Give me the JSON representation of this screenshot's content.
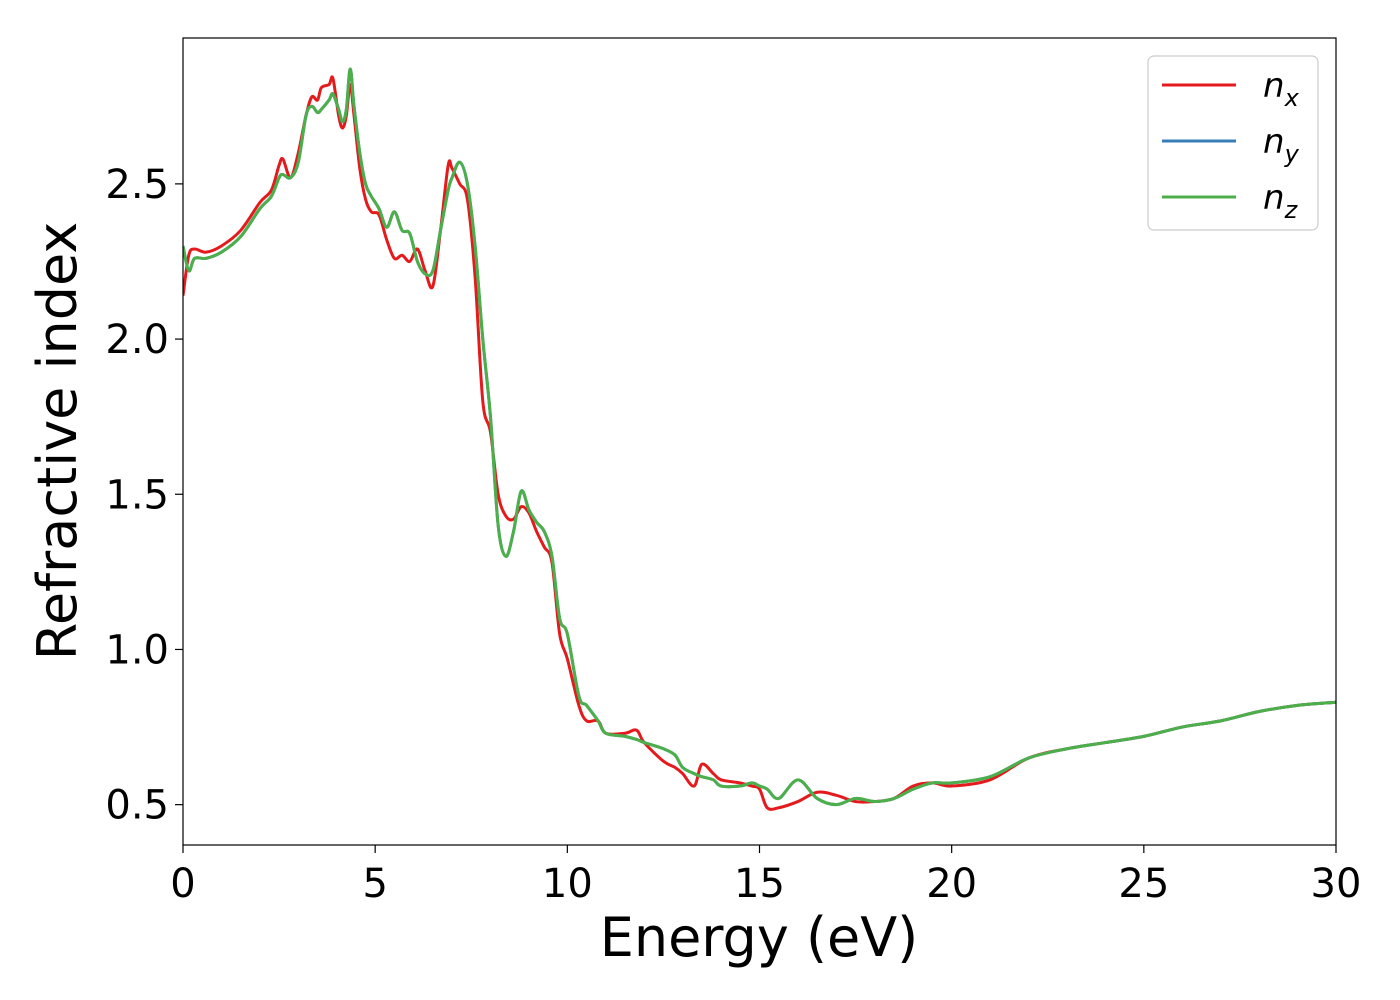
{
  "chart_data": {
    "type": "line",
    "title": "",
    "xlabel": "Energy (eV)",
    "ylabel": "Refractive index",
    "xlim": [
      0,
      30
    ],
    "ylim": [
      0.37,
      2.97
    ],
    "xticks": [
      0,
      5,
      10,
      15,
      20,
      25,
      30
    ],
    "xtick_labels": [
      "0",
      "5",
      "10",
      "15",
      "20",
      "25",
      "30"
    ],
    "yticks": [
      0.5,
      1.0,
      1.5,
      2.0,
      2.5
    ],
    "ytick_labels": [
      "0.5",
      "1.0",
      "1.5",
      "2.0",
      "2.5"
    ],
    "grid": false,
    "legend_position": "top-right",
    "series": [
      {
        "name": "n",
        "subscript": "x",
        "color": "#e41a1c",
        "x": [
          0,
          0.15,
          0.3,
          0.6,
          1.0,
          1.5,
          2.0,
          2.3,
          2.5,
          2.6,
          2.8,
          3.0,
          3.2,
          3.35,
          3.5,
          3.6,
          3.8,
          3.9,
          4.05,
          4.15,
          4.25,
          4.35,
          4.45,
          4.6,
          4.75,
          4.9,
          5.1,
          5.3,
          5.5,
          5.7,
          5.9,
          6.1,
          6.3,
          6.5,
          6.7,
          6.9,
          7.0,
          7.2,
          7.4,
          7.6,
          7.8,
          8.0,
          8.2,
          8.4,
          8.6,
          8.8,
          9.0,
          9.2,
          9.4,
          9.6,
          9.8,
          10.0,
          10.3,
          10.5,
          10.8,
          11.0,
          11.5,
          11.8,
          12.0,
          12.5,
          12.8,
          13.0,
          13.3,
          13.5,
          13.8,
          14.0,
          14.5,
          14.8,
          15.0,
          15.2,
          15.5,
          16.0,
          16.5,
          17.0,
          17.5,
          18.0,
          18.5,
          19.0,
          19.5,
          20.0,
          21.0,
          22.0,
          23.0,
          24.0,
          25.0,
          26.0,
          27.0,
          28.0,
          29.0,
          30.0
        ],
        "values": [
          2.14,
          2.27,
          2.29,
          2.28,
          2.3,
          2.35,
          2.44,
          2.48,
          2.56,
          2.58,
          2.52,
          2.6,
          2.72,
          2.78,
          2.77,
          2.81,
          2.82,
          2.84,
          2.72,
          2.68,
          2.72,
          2.82,
          2.72,
          2.55,
          2.45,
          2.41,
          2.4,
          2.32,
          2.26,
          2.27,
          2.25,
          2.29,
          2.22,
          2.17,
          2.35,
          2.56,
          2.55,
          2.5,
          2.45,
          2.2,
          1.8,
          1.7,
          1.5,
          1.43,
          1.42,
          1.46,
          1.44,
          1.38,
          1.33,
          1.28,
          1.05,
          0.97,
          0.82,
          0.77,
          0.77,
          0.73,
          0.73,
          0.74,
          0.7,
          0.64,
          0.62,
          0.6,
          0.56,
          0.63,
          0.6,
          0.58,
          0.57,
          0.56,
          0.55,
          0.49,
          0.49,
          0.51,
          0.54,
          0.53,
          0.51,
          0.51,
          0.52,
          0.56,
          0.57,
          0.56,
          0.58,
          0.65,
          0.68,
          0.7,
          0.72,
          0.75,
          0.77,
          0.8,
          0.82,
          0.83
        ]
      },
      {
        "name": "n",
        "subscript": "y",
        "color": "#377eb8",
        "x": [
          0,
          0.15,
          0.3,
          0.6,
          1.0,
          1.5,
          2.0,
          2.3,
          2.5,
          2.6,
          2.8,
          3.0,
          3.2,
          3.35,
          3.5,
          3.6,
          3.8,
          3.9,
          4.05,
          4.15,
          4.25,
          4.35,
          4.45,
          4.6,
          4.75,
          4.9,
          5.1,
          5.3,
          5.5,
          5.7,
          5.9,
          6.1,
          6.3,
          6.5,
          6.7,
          6.9,
          7.0,
          7.2,
          7.4,
          7.6,
          7.8,
          8.0,
          8.2,
          8.4,
          8.6,
          8.8,
          9.0,
          9.2,
          9.4,
          9.6,
          9.8,
          10.0,
          10.3,
          10.5,
          10.8,
          11.0,
          11.5,
          11.8,
          12.0,
          12.5,
          12.8,
          13.0,
          13.3,
          13.5,
          13.8,
          14.0,
          14.5,
          14.8,
          15.0,
          15.2,
          15.5,
          16.0,
          16.5,
          17.0,
          17.5,
          18.0,
          18.5,
          19.0,
          19.5,
          20.0,
          21.0,
          22.0,
          23.0,
          24.0,
          25.0,
          26.0,
          27.0,
          28.0,
          29.0,
          30.0
        ],
        "values": [
          2.3,
          2.22,
          2.26,
          2.26,
          2.28,
          2.33,
          2.42,
          2.46,
          2.52,
          2.53,
          2.52,
          2.57,
          2.72,
          2.75,
          2.73,
          2.74,
          2.77,
          2.79,
          2.74,
          2.7,
          2.74,
          2.87,
          2.75,
          2.6,
          2.5,
          2.46,
          2.42,
          2.36,
          2.41,
          2.35,
          2.34,
          2.25,
          2.21,
          2.22,
          2.35,
          2.48,
          2.52,
          2.57,
          2.5,
          2.3,
          2.0,
          1.75,
          1.4,
          1.3,
          1.38,
          1.51,
          1.45,
          1.41,
          1.38,
          1.3,
          1.1,
          1.05,
          0.85,
          0.82,
          0.77,
          0.73,
          0.72,
          0.71,
          0.7,
          0.68,
          0.66,
          0.62,
          0.6,
          0.59,
          0.58,
          0.56,
          0.56,
          0.57,
          0.56,
          0.55,
          0.52,
          0.58,
          0.52,
          0.5,
          0.52,
          0.51,
          0.52,
          0.55,
          0.57,
          0.57,
          0.59,
          0.65,
          0.68,
          0.7,
          0.72,
          0.75,
          0.77,
          0.8,
          0.82,
          0.83
        ]
      },
      {
        "name": "n",
        "subscript": "z",
        "color": "#4daf4a",
        "x": [
          0,
          0.15,
          0.3,
          0.6,
          1.0,
          1.5,
          2.0,
          2.3,
          2.5,
          2.6,
          2.8,
          3.0,
          3.2,
          3.35,
          3.5,
          3.6,
          3.8,
          3.9,
          4.05,
          4.15,
          4.25,
          4.35,
          4.45,
          4.6,
          4.75,
          4.9,
          5.1,
          5.3,
          5.5,
          5.7,
          5.9,
          6.1,
          6.3,
          6.5,
          6.7,
          6.9,
          7.0,
          7.2,
          7.4,
          7.6,
          7.8,
          8.0,
          8.2,
          8.4,
          8.6,
          8.8,
          9.0,
          9.2,
          9.4,
          9.6,
          9.8,
          10.0,
          10.3,
          10.5,
          10.8,
          11.0,
          11.5,
          11.8,
          12.0,
          12.5,
          12.8,
          13.0,
          13.3,
          13.5,
          13.8,
          14.0,
          14.5,
          14.8,
          15.0,
          15.2,
          15.5,
          16.0,
          16.5,
          17.0,
          17.5,
          18.0,
          18.5,
          19.0,
          19.5,
          20.0,
          21.0,
          22.0,
          23.0,
          24.0,
          25.0,
          26.0,
          27.0,
          28.0,
          29.0,
          30.0
        ],
        "values": [
          2.3,
          2.22,
          2.26,
          2.26,
          2.28,
          2.33,
          2.42,
          2.46,
          2.52,
          2.53,
          2.52,
          2.57,
          2.72,
          2.75,
          2.73,
          2.74,
          2.77,
          2.79,
          2.74,
          2.7,
          2.74,
          2.87,
          2.75,
          2.6,
          2.5,
          2.46,
          2.42,
          2.36,
          2.41,
          2.35,
          2.34,
          2.25,
          2.21,
          2.22,
          2.35,
          2.48,
          2.52,
          2.57,
          2.5,
          2.3,
          2.0,
          1.75,
          1.4,
          1.3,
          1.38,
          1.51,
          1.45,
          1.41,
          1.38,
          1.3,
          1.1,
          1.05,
          0.85,
          0.82,
          0.77,
          0.73,
          0.72,
          0.71,
          0.7,
          0.68,
          0.66,
          0.62,
          0.6,
          0.59,
          0.58,
          0.56,
          0.56,
          0.57,
          0.56,
          0.55,
          0.52,
          0.58,
          0.52,
          0.5,
          0.52,
          0.51,
          0.52,
          0.55,
          0.57,
          0.57,
          0.59,
          0.65,
          0.68,
          0.7,
          0.72,
          0.75,
          0.77,
          0.8,
          0.82,
          0.83
        ]
      }
    ]
  }
}
